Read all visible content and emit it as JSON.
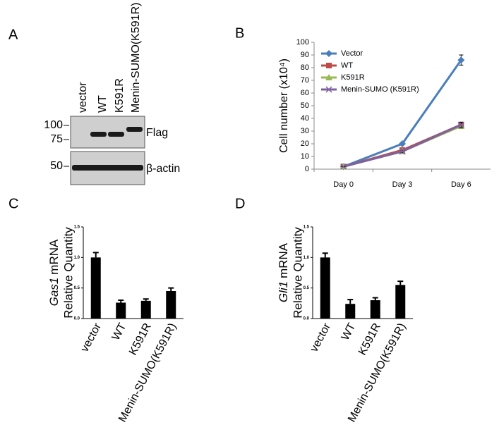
{
  "panel_labels": [
    "A",
    "B",
    "C",
    "D"
  ],
  "blot": {
    "lanes": [
      "vector",
      "WT",
      "K591R",
      "Menin-SUMO(K591R)"
    ],
    "markers": [
      "100",
      "75",
      "50"
    ],
    "bands": [
      "Flag",
      "β-actin"
    ]
  },
  "chart_data": [
    {
      "type": "line",
      "y_label": "Cell number (x10⁴)",
      "categories": [
        "Day 0",
        "Day 3",
        "Day 6"
      ],
      "ylim": [
        0,
        100
      ],
      "yticks": [
        0,
        10,
        20,
        30,
        40,
        50,
        60,
        70,
        80,
        90,
        100
      ],
      "legend": "upper-left",
      "series": [
        {
          "name": "Vector",
          "color": "#4a7ebb",
          "marker": "diamond",
          "values": [
            2,
            20,
            86
          ],
          "errors": [
            0,
            1,
            4
          ]
        },
        {
          "name": "WT",
          "color": "#be4b48",
          "marker": "square",
          "values": [
            2,
            15,
            35
          ],
          "errors": [
            0,
            1,
            2
          ]
        },
        {
          "name": "K591R",
          "color": "#98b954",
          "marker": "triangle",
          "values": [
            2,
            14,
            34
          ],
          "errors": [
            0,
            1,
            2
          ]
        },
        {
          "name": "Menin-SUMO (K591R)",
          "color": "#7d60a0",
          "marker": "x",
          "values": [
            2,
            14,
            35
          ],
          "errors": [
            0,
            1,
            2
          ]
        }
      ]
    },
    {
      "type": "bar",
      "y_label": [
        "Gas1",
        "mRNA",
        "Relative Quantity"
      ],
      "categories": [
        "vector",
        "WT",
        "K591R",
        "Menin-SUMO(K591R)"
      ],
      "values": [
        1.0,
        0.26,
        0.29,
        0.45
      ],
      "errors": [
        0.08,
        0.04,
        0.03,
        0.05
      ],
      "color": "#000000",
      "ylim": [
        0,
        1.5
      ],
      "yticks": [
        {
          "value": 0,
          "label": "0.0"
        },
        {
          "value": 0.5,
          "label": "0.5"
        },
        {
          "value": 1,
          "label": "1.0"
        },
        {
          "value": 1.5,
          "label": "1.5"
        }
      ]
    },
    {
      "type": "bar",
      "y_label": [
        "Gli1",
        "mRNA",
        "Relative Quantity"
      ],
      "categories": [
        "vector",
        "WT",
        "K591R",
        "Menin-SUMO(K591R)"
      ],
      "values": [
        1.0,
        0.24,
        0.3,
        0.55
      ],
      "errors": [
        0.07,
        0.07,
        0.04,
        0.06
      ],
      "color": "#000000",
      "ylim": [
        0,
        1.5
      ],
      "yticks": [
        {
          "value": 0,
          "label": "0.0"
        },
        {
          "value": 0.5,
          "label": "0.5"
        },
        {
          "value": 1,
          "label": "1.0"
        },
        {
          "value": 1.5,
          "label": "1.5"
        }
      ]
    }
  ]
}
